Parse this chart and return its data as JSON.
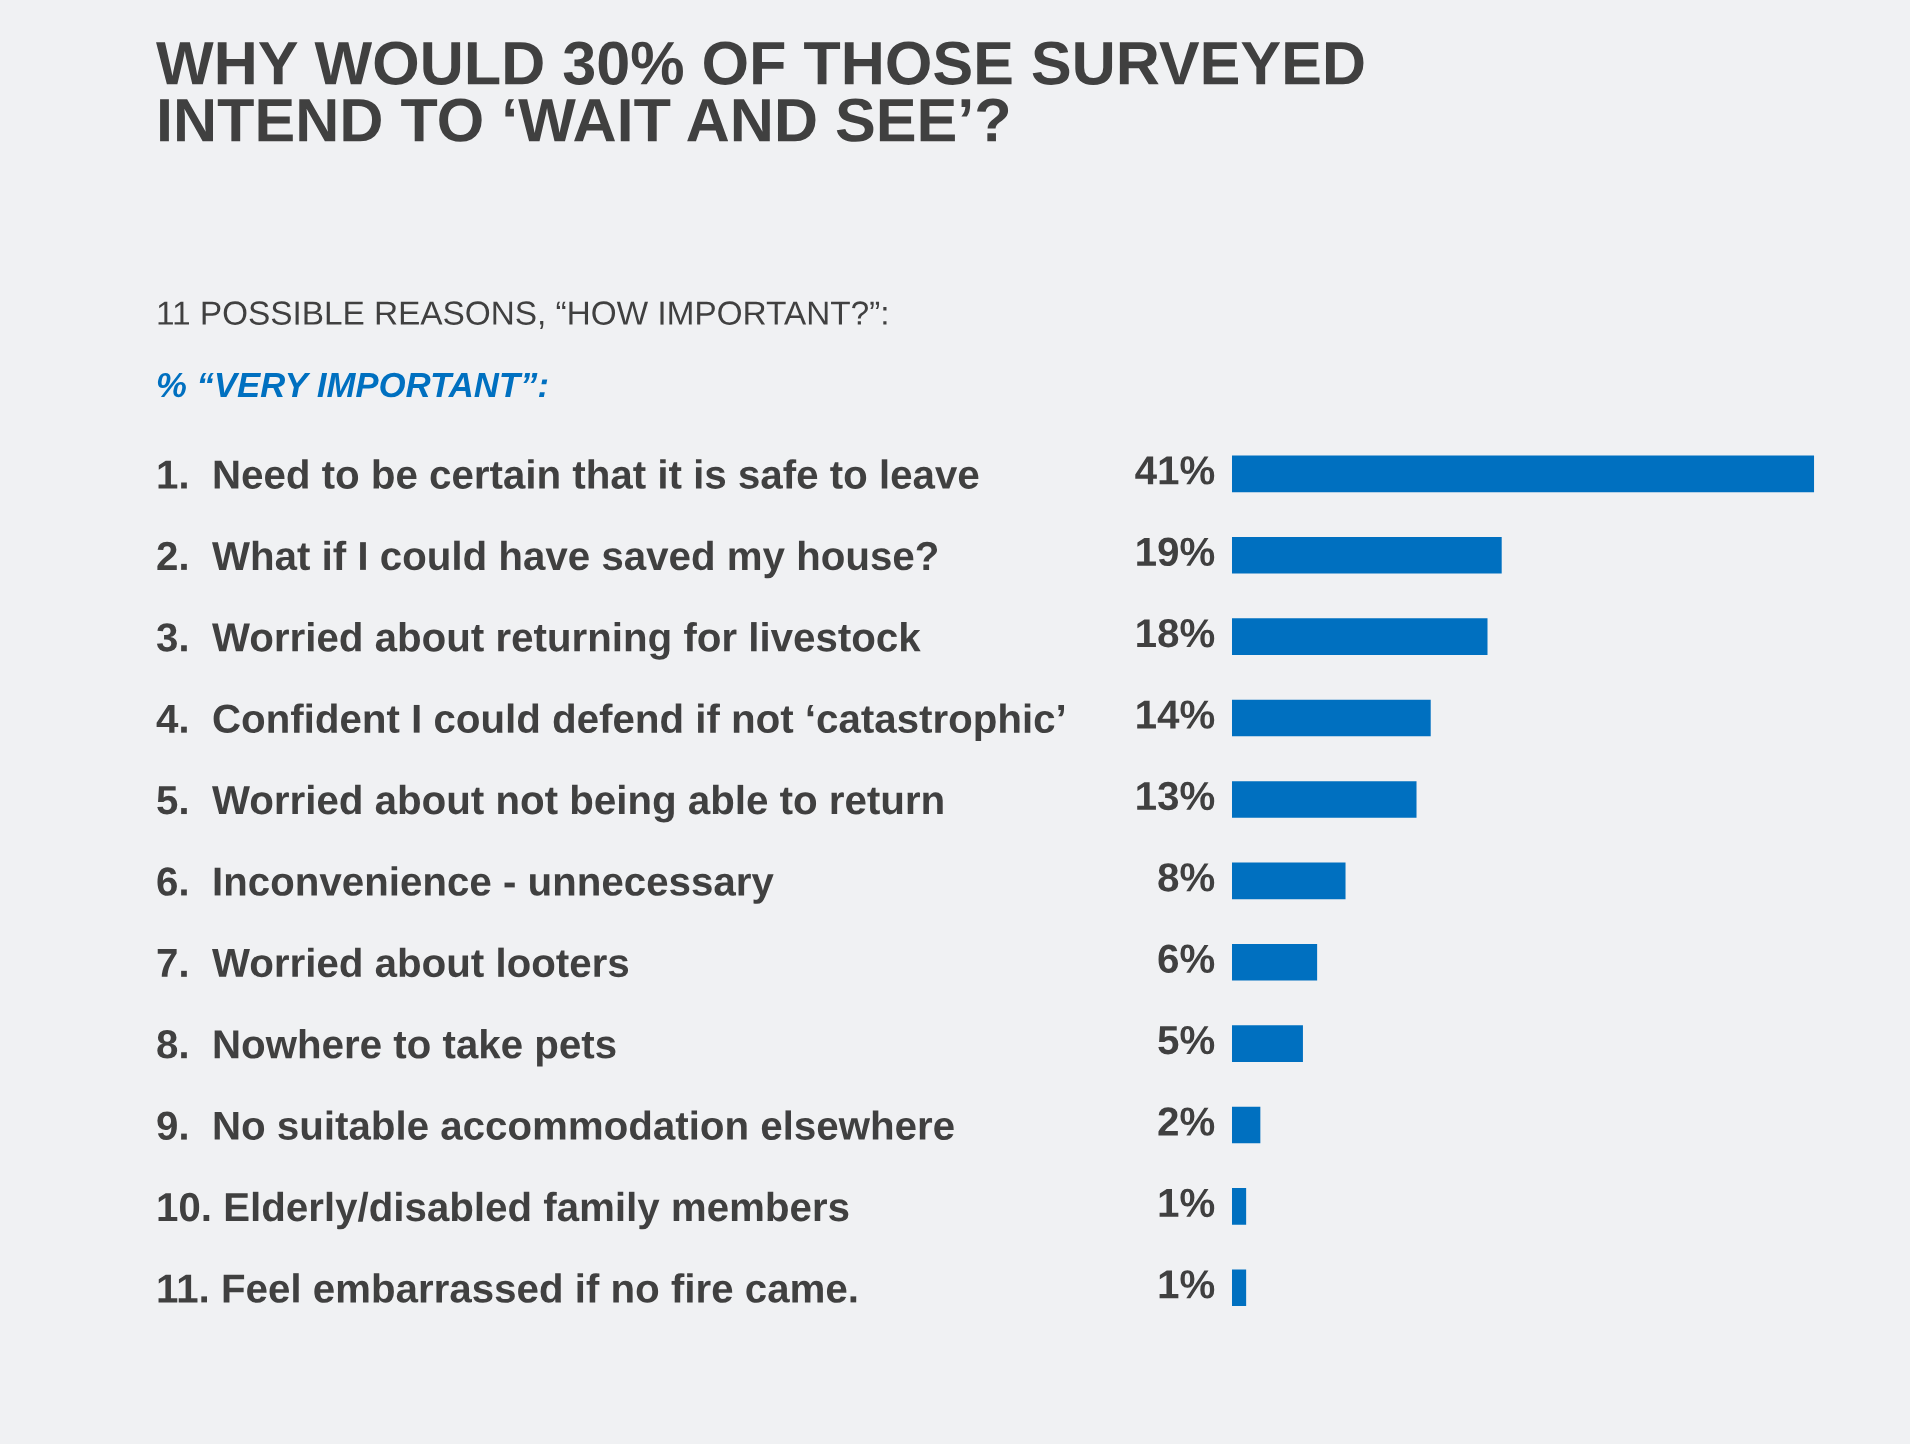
{
  "chart_data": {
    "type": "bar",
    "orientation": "horizontal",
    "title": "WHY WOULD 30% OF THOSE SURVEYED\nINTEND TO ‘WAIT AND SEE’?",
    "subtitle": "11 POSSIBLE REASONS, “HOW IMPORTANT?”:",
    "xlabel": "% “VERY IMPORTANT”:",
    "categories": [
      "1.  Need to be certain that it is safe to leave",
      "2.  What if I could have saved my house?",
      "3.  Worried about returning for livestock",
      "4.  Confident I could defend if not ‘catastrophic’",
      "5.  Worried about not being able to return",
      "6.  Inconvenience - unnecessary",
      "7.  Worried about looters",
      "8.  Nowhere to take pets",
      "9.  No suitable accommodation elsewhere",
      "10. Elderly/disabled family members",
      "11. Feel embarrassed if no fire came."
    ],
    "values": [
      41,
      19,
      18,
      14,
      13,
      8,
      6,
      5,
      2,
      1,
      1
    ],
    "value_labels": [
      "41%",
      "19%",
      "18%",
      "14%",
      "13%",
      "8%",
      "6%",
      "5%",
      "2%",
      "1%",
      "1%"
    ],
    "color": "#0070c0",
    "grid": false,
    "legend": false
  }
}
